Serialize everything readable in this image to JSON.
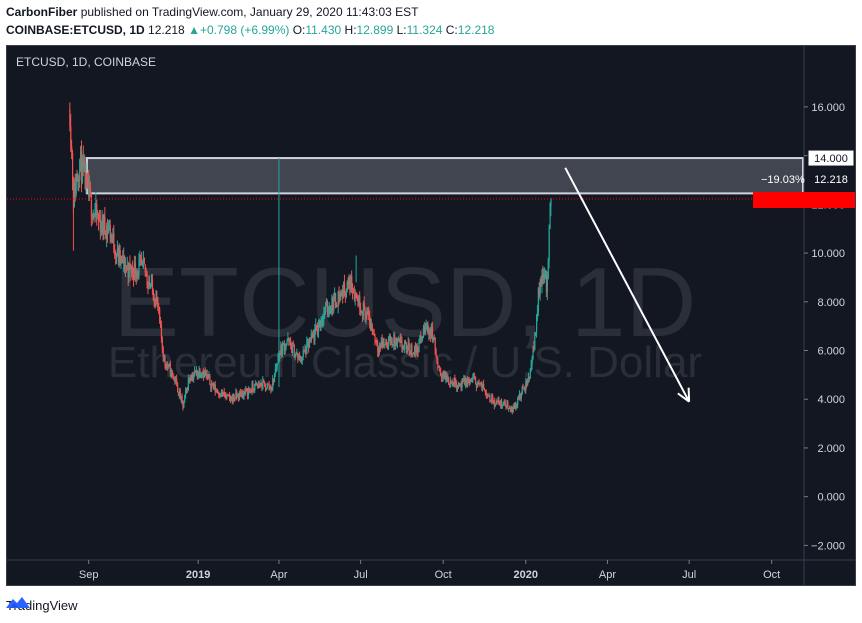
{
  "header": {
    "author": "CarbonFiber",
    "published_text": "published on TradingView.com, January 29, 2020 11:43:03 EST",
    "symbol": "COINBASE:ETCUSD, 1D",
    "last": "12.218",
    "change": "+0.798 (+6.99%)",
    "o_label": "O:",
    "o_value": "11.430",
    "h_label": "H:",
    "h_value": "12.899",
    "l_label": "L:",
    "l_value": "11.324",
    "c_label": "C:",
    "c_value": "12.218"
  },
  "chart": {
    "pane_title": "ETCUSD, 1D, COINBASE",
    "watermark_symbol": "ETCUSD, 1D",
    "watermark_desc": "Ethereum Classic / U.S. Dollar",
    "price_label_resistance": "14.000",
    "price_label_last_pct": "−19.03%",
    "price_label_last": "12.218"
  },
  "footer": {
    "brand": "TradingView"
  },
  "colors": {
    "background": "#131722",
    "up": "#26a69a",
    "down": "#ef5350",
    "last_price": "#ff0000",
    "zone_fill": "#4a4d57",
    "zone_border": "#d1d4dc",
    "arrow": "#ffffff",
    "axis_text": "#d1d4dc",
    "watermark": "#2a2e39"
  },
  "chart_data": {
    "type": "candlestick",
    "symbol": "ETCUSD",
    "interval": "1D",
    "exchange": "COINBASE",
    "y_ticks": [
      "16.000",
      "14.000",
      "12.000",
      "10.000",
      "8.000",
      "6.000",
      "4.000",
      "2.000",
      "0.000",
      "−2.000"
    ],
    "ylim": [
      -2.6,
      18.5
    ],
    "x_ticks": [
      "Sep",
      "2019",
      "Apr",
      "Jul",
      "Oct",
      "2020",
      "Apr",
      "Jul",
      "Oct"
    ],
    "x_tick_dates": [
      "2018-09-01",
      "2019-01-01",
      "2019-04-01",
      "2019-07-01",
      "2019-10-01",
      "2020-01-01",
      "2020-04-01",
      "2020-07-01",
      "2020-10-01"
    ],
    "xlim": [
      "2018-06-02",
      "2020-11-06"
    ],
    "price_path": [
      {
        "date": "2018-08-11",
        "close": 15.9
      },
      {
        "date": "2018-08-15",
        "close": 12.3
      },
      {
        "date": "2018-08-22",
        "close": 13.8
      },
      {
        "date": "2018-08-30",
        "close": 12.6
      },
      {
        "date": "2018-09-06",
        "close": 11.7
      },
      {
        "date": "2018-09-14",
        "close": 11.2
      },
      {
        "date": "2018-09-24",
        "close": 11.0
      },
      {
        "date": "2018-10-04",
        "close": 9.8
      },
      {
        "date": "2018-10-16",
        "close": 9.3
      },
      {
        "date": "2018-11-01",
        "close": 9.4
      },
      {
        "date": "2018-11-16",
        "close": 8.0
      },
      {
        "date": "2018-11-24",
        "close": 5.6
      },
      {
        "date": "2018-12-06",
        "close": 4.8
      },
      {
        "date": "2018-12-15",
        "close": 3.7
      },
      {
        "date": "2018-12-22",
        "close": 4.9
      },
      {
        "date": "2019-01-05",
        "close": 5.2
      },
      {
        "date": "2019-01-20",
        "close": 4.4
      },
      {
        "date": "2019-02-05",
        "close": 4.0
      },
      {
        "date": "2019-02-24",
        "close": 4.3
      },
      {
        "date": "2019-03-10",
        "close": 4.6
      },
      {
        "date": "2019-03-24",
        "close": 4.5
      },
      {
        "date": "2019-04-01",
        "close": 5.9
      },
      {
        "date": "2019-04-10",
        "close": 6.4
      },
      {
        "date": "2019-04-24",
        "close": 5.6
      },
      {
        "date": "2019-05-10",
        "close": 6.6
      },
      {
        "date": "2019-05-22",
        "close": 7.6
      },
      {
        "date": "2019-06-06",
        "close": 8.2
      },
      {
        "date": "2019-06-20",
        "close": 8.8
      },
      {
        "date": "2019-06-29",
        "close": 8.0
      },
      {
        "date": "2019-07-10",
        "close": 7.3
      },
      {
        "date": "2019-07-20",
        "close": 6.2
      },
      {
        "date": "2019-08-05",
        "close": 6.4
      },
      {
        "date": "2019-08-20",
        "close": 6.1
      },
      {
        "date": "2019-09-01",
        "close": 6.0
      },
      {
        "date": "2019-09-12",
        "close": 7.0
      },
      {
        "date": "2019-09-20",
        "close": 6.6
      },
      {
        "date": "2019-09-25",
        "close": 5.2
      },
      {
        "date": "2019-10-06",
        "close": 4.8
      },
      {
        "date": "2019-10-20",
        "close": 4.6
      },
      {
        "date": "2019-11-04",
        "close": 4.8
      },
      {
        "date": "2019-11-16",
        "close": 4.4
      },
      {
        "date": "2019-11-26",
        "close": 3.9
      },
      {
        "date": "2019-12-08",
        "close": 3.8
      },
      {
        "date": "2019-12-18",
        "close": 3.6
      },
      {
        "date": "2019-12-28",
        "close": 4.3
      },
      {
        "date": "2020-01-04",
        "close": 4.8
      },
      {
        "date": "2020-01-10",
        "close": 6.2
      },
      {
        "date": "2020-01-16",
        "close": 8.6
      },
      {
        "date": "2020-01-20",
        "close": 9.3
      },
      {
        "date": "2020-01-24",
        "close": 8.6
      },
      {
        "date": "2020-01-29",
        "close": 12.218
      }
    ],
    "spikes": [
      {
        "date": "2019-04-01",
        "high": 13.9
      },
      {
        "date": "2019-06-26",
        "high": 9.9
      }
    ],
    "last_price": 12.218,
    "last_change_pct_to_resistance": "−19.03%",
    "resistance_zone": {
      "from": "2018-08-30",
      "to": "2020-11-06",
      "low": 12.45,
      "high": 13.9,
      "label": "14.000"
    },
    "projection_arrow": {
      "from": {
        "date": "2020-02-14",
        "price": 13.5
      },
      "to": {
        "date": "2020-07-01",
        "price": 3.9
      }
    },
    "grid": false,
    "legend": "none"
  }
}
